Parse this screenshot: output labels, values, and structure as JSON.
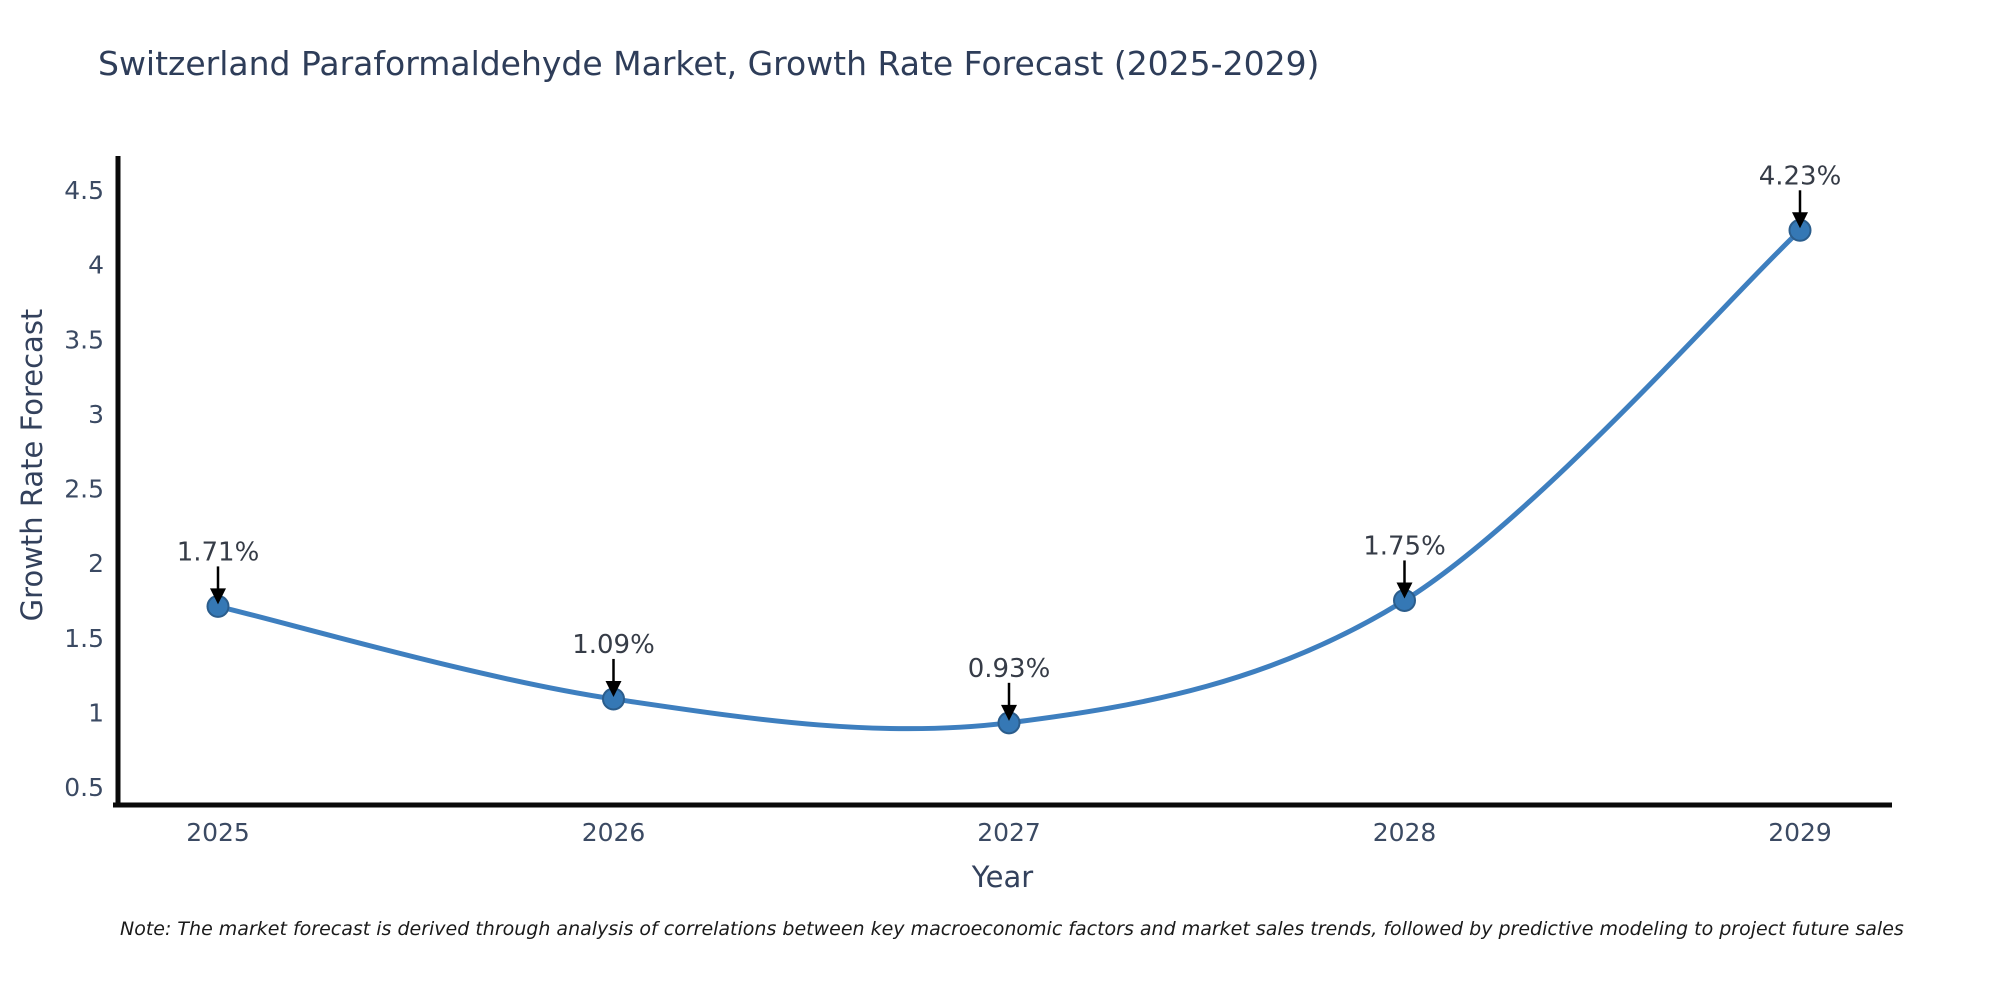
{
  "title": "Switzerland Paraformaldehyde Market, Growth Rate Forecast (2025-2029)",
  "note": "Note: The market forecast is derived through analysis of correlations between key macroeconomic factors and market sales trends, followed by predictive modeling to project future sales",
  "chart_data": {
    "type": "line",
    "title": "Switzerland Paraformaldehyde Market, Growth Rate Forecast (2025-2029)",
    "x": [
      "2025",
      "2026",
      "2027",
      "2028",
      "2029"
    ],
    "series": [
      {
        "name": "Growth Rate Forecast",
        "values": [
          1.71,
          1.09,
          0.93,
          1.75,
          4.23
        ],
        "point_labels": [
          "1.71%",
          "1.09%",
          "0.93%",
          "1.75%",
          "4.23%"
        ]
      }
    ],
    "xlabel": "Year",
    "ylabel": "Growth Rate Forecast",
    "ylim": [
      0.5,
      4.5
    ],
    "yticks": [
      0.5,
      1,
      1.5,
      2,
      2.5,
      3,
      3.5,
      4,
      4.5
    ],
    "grid": false,
    "legend_position": "none",
    "smooth": true,
    "annotations_have_arrows": true,
    "colors": {
      "line": "#3e7fbf",
      "marker_fill": "#3578b5",
      "marker_edge": "#2b5d8c",
      "arrow": "#000000",
      "annotation_text": "#363c47",
      "axis_spine": "#0a0a0a",
      "tick_label": "#3b4a63",
      "axis_title": "#33415c",
      "chart_title": "#2e3d59",
      "note_text": "#1a1a1a"
    }
  }
}
